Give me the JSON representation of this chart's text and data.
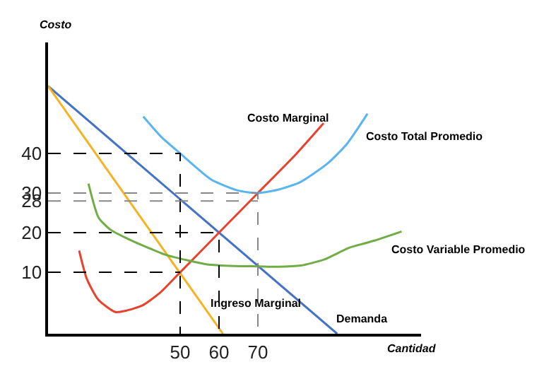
{
  "chart_data": {
    "type": "line",
    "xlabel": "Cantidad",
    "ylabel": "Costo",
    "xlim": [
      16,
      112
    ],
    "ylim": [
      -5.5,
      68
    ],
    "xticks": [
      50,
      60,
      70
    ],
    "yticks": [
      10,
      20,
      28,
      30,
      40
    ],
    "legend": false,
    "marker": "none",
    "line_style": "solid",
    "series": [
      {
        "name": "Demanda",
        "color": "#4472c4",
        "x": [
          16,
          90.4
        ],
        "values": [
          57,
          -5.5
        ]
      },
      {
        "name": "Ingreso Marginal",
        "color": "#f5b323",
        "x": [
          16,
          61
        ],
        "values": [
          57,
          -5.5
        ]
      },
      {
        "name": "Costo Marginal",
        "color": "#e8412c",
        "x": [
          24,
          26,
          29,
          33.3,
          36,
          40.4,
          45,
          50,
          60,
          70,
          80,
          86.9
        ],
        "values": [
          15.5,
          8.3,
          3,
          0,
          0.3,
          1.7,
          5,
          10,
          20,
          30,
          40,
          47.6
        ]
      },
      {
        "name": "Costo Total Promedio",
        "color": "#5ab4f0",
        "x": [
          40.5,
          45,
          50,
          58,
          65,
          70,
          75,
          81,
          88,
          93,
          98.2
        ],
        "values": [
          49.3,
          44.3,
          40,
          33.4,
          30.6,
          30,
          30.8,
          32.8,
          37.5,
          42.5,
          50
        ]
      },
      {
        "name": "Costo Variable Promedio",
        "color": "#70ad47",
        "x": [
          26.4,
          29,
          32,
          36.2,
          41,
          46,
          52,
          57,
          64,
          70,
          75,
          81,
          87,
          93.5,
          100,
          107
        ],
        "values": [
          32.4,
          23.8,
          20.8,
          18.6,
          16.5,
          14.5,
          13,
          12,
          11.6,
          11.5,
          11.4,
          11.7,
          13.2,
          16.2,
          18,
          20.3
        ]
      },
      {
        "color": "#000000",
        "line_style": "dashed",
        "x": [
          16,
          50,
          50
        ],
        "values": [
          40,
          40,
          -5.5
        ]
      },
      {
        "color": "#000000",
        "line_style": "dashed",
        "x": [
          16,
          50
        ],
        "values": [
          10,
          10
        ]
      },
      {
        "color": "#000000",
        "line_style": "dashed",
        "x": [
          16,
          60,
          60
        ],
        "values": [
          20,
          20,
          -5.5
        ]
      },
      {
        "color": "#888888",
        "line_style": "dashed",
        "x": [
          16,
          70,
          70
        ],
        "values": [
          30,
          30,
          -5.5
        ]
      },
      {
        "color": "#888888",
        "line_style": "dashed",
        "x": [
          16,
          70
        ],
        "values": [
          28,
          28
        ]
      }
    ]
  }
}
